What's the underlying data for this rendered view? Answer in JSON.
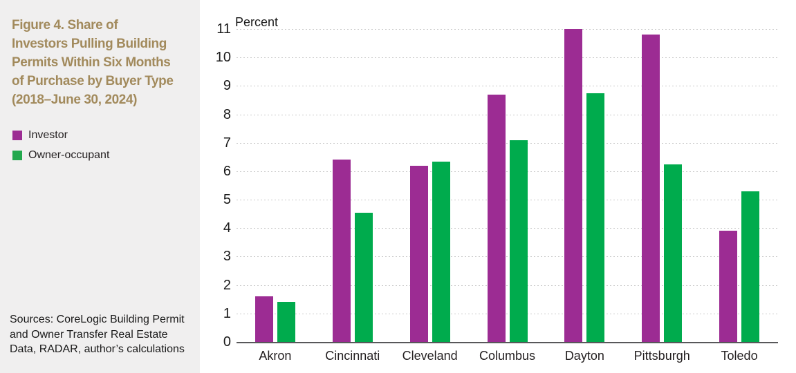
{
  "panel": {
    "title_lines": [
      "Figure 4. Share of",
      "Investors Pulling Building",
      "Permits Within Six Months",
      "of Purchase by Buyer Type",
      "(2018–June 30, 2024)"
    ],
    "legend": [
      {
        "label": "Investor",
        "color": "#9c2c93"
      },
      {
        "label": "Owner-occupant",
        "color": "#22a84d"
      }
    ],
    "sources_lines": [
      "Sources: CoreLogic Building Permit",
      "and Owner Transfer Real Estate",
      "Data, RADAR, author’s calculations"
    ]
  },
  "colors": {
    "investor": "#9c2c93",
    "owner_occupant": "#00ab4d",
    "title_gold": "#a28a5c",
    "panel_background": "#f0efef",
    "axis_line": "#58585a",
    "gridline": "#c9c9c9"
  },
  "chart_data": {
    "type": "bar",
    "title": "Figure 4. Share of Investors Pulling Building Permits Within Six Months of Purchase by Buyer Type (2018–June 30, 2024)",
    "ylabel": "Percent",
    "xlabel": "",
    "ylim": [
      0,
      11
    ],
    "yticks": [
      0,
      1,
      2,
      3,
      4,
      5,
      6,
      7,
      8,
      9,
      10,
      11
    ],
    "grid": true,
    "grid_style": "dashed",
    "legend_position": "left-panel",
    "categories": [
      "Akron",
      "Cincinnati",
      "Cleveland",
      "Columbus",
      "Dayton",
      "Pittsburgh",
      "Toledo"
    ],
    "series": [
      {
        "name": "Investor",
        "color": "#9c2c93",
        "values": [
          1.6,
          6.4,
          6.2,
          8.7,
          11.0,
          10.8,
          3.9
        ]
      },
      {
        "name": "Owner-occupant",
        "color": "#00ab4d",
        "values": [
          1.4,
          4.55,
          6.35,
          7.1,
          8.75,
          6.25,
          5.3
        ]
      }
    ]
  }
}
